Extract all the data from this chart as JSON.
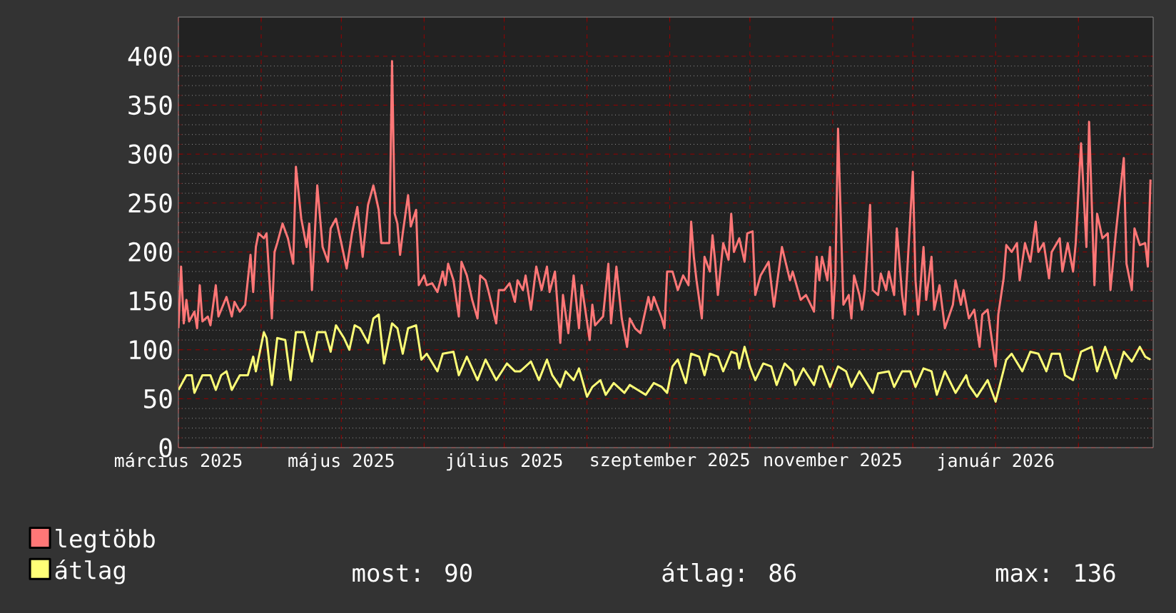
{
  "chart_data": {
    "type": "line",
    "xlim": [
      "2025-03-01",
      "2026-03-01"
    ],
    "xticks": [
      {
        "value": "2025-03-01",
        "label": "március 2025"
      },
      {
        "value": "2025-04-01",
        "label": null
      },
      {
        "value": "2025-05-01",
        "label": "május 2025"
      },
      {
        "value": "2025-06-01",
        "label": null
      },
      {
        "value": "2025-07-01",
        "label": "július 2025"
      },
      {
        "value": "2025-08-01",
        "label": null
      },
      {
        "value": "2025-09-01",
        "label": "szeptember 2025"
      },
      {
        "value": "2025-10-01",
        "label": null
      },
      {
        "value": "2025-11-01",
        "label": "november 2025"
      },
      {
        "value": "2025-12-01",
        "label": null
      },
      {
        "value": "2026-01-01",
        "label": "január 2026"
      },
      {
        "value": "2026-02-01",
        "label": null
      }
    ],
    "ylim": [
      0,
      440
    ],
    "yticks": [
      0,
      50,
      100,
      150,
      200,
      250,
      300,
      350,
      400
    ],
    "grid": true,
    "legend": "bottom left",
    "annotations": [
      "most: 90",
      "átlag: 86",
      "max: 136"
    ],
    "series": [
      {
        "name": "legtöbb",
        "color": "#ff7777",
        "x": [
          "2025-03-01",
          "2025-03-02",
          "2025-03-03",
          "2025-03-04",
          "2025-03-05",
          "2025-03-07",
          "2025-03-08",
          "2025-03-09",
          "2025-03-10",
          "2025-03-12",
          "2025-03-13",
          "2025-03-15",
          "2025-03-16",
          "2025-03-19",
          "2025-03-21",
          "2025-03-22",
          "2025-03-24",
          "2025-03-26",
          "2025-03-28",
          "2025-03-29",
          "2025-03-30",
          "2025-03-31",
          "2025-04-02",
          "2025-04-03",
          "2025-04-05",
          "2025-04-06",
          "2025-04-07",
          "2025-04-09",
          "2025-04-11",
          "2025-04-13",
          "2025-04-14",
          "2025-04-16",
          "2025-04-18",
          "2025-04-19",
          "2025-04-20",
          "2025-04-22",
          "2025-04-24",
          "2025-04-26",
          "2025-04-27",
          "2025-04-29",
          "2025-05-01",
          "2025-05-03",
          "2025-05-05",
          "2025-05-07",
          "2025-05-09",
          "2025-05-11",
          "2025-05-13",
          "2025-05-15",
          "2025-05-16",
          "2025-05-19",
          "2025-05-20",
          "2025-05-21",
          "2025-05-22",
          "2025-05-23",
          "2025-05-24",
          "2025-05-26",
          "2025-05-27",
          "2025-05-29",
          "2025-05-30",
          "2025-06-01",
          "2025-06-02",
          "2025-06-04",
          "2025-06-06",
          "2025-06-08",
          "2025-06-09",
          "2025-06-10",
          "2025-06-12",
          "2025-06-14",
          "2025-06-15",
          "2025-06-17",
          "2025-06-19",
          "2025-06-21",
          "2025-06-22",
          "2025-06-24",
          "2025-06-25",
          "2025-06-28",
          "2025-06-29",
          "2025-07-01",
          "2025-07-03",
          "2025-07-05",
          "2025-07-06",
          "2025-07-08",
          "2025-07-09",
          "2025-07-11",
          "2025-07-13",
          "2025-07-15",
          "2025-07-17",
          "2025-07-18",
          "2025-07-20",
          "2025-07-22",
          "2025-07-23",
          "2025-07-25",
          "2025-07-27",
          "2025-07-29",
          "2025-07-30",
          "2025-08-02",
          "2025-08-03",
          "2025-08-04",
          "2025-08-07",
          "2025-08-09",
          "2025-08-10",
          "2025-08-12",
          "2025-08-14",
          "2025-08-16",
          "2025-08-17",
          "2025-08-19",
          "2025-08-21",
          "2025-08-24",
          "2025-08-25",
          "2025-08-26",
          "2025-08-29",
          "2025-08-30",
          "2025-08-31",
          "2025-09-02",
          "2025-09-04",
          "2025-09-06",
          "2025-09-08",
          "2025-09-09",
          "2025-09-10",
          "2025-09-11",
          "2025-09-13",
          "2025-09-14",
          "2025-09-16",
          "2025-09-17",
          "2025-09-18",
          "2025-09-19",
          "2025-09-21",
          "2025-09-23",
          "2025-09-24",
          "2025-09-25",
          "2025-09-27",
          "2025-09-29",
          "2025-09-30",
          "2025-10-02",
          "2025-10-03",
          "2025-10-05",
          "2025-10-08",
          "2025-10-10",
          "2025-10-12",
          "2025-10-13",
          "2025-10-16",
          "2025-10-17",
          "2025-10-20",
          "2025-10-22",
          "2025-10-25",
          "2025-10-26",
          "2025-10-27",
          "2025-10-28",
          "2025-10-30",
          "2025-10-31",
          "2025-11-01",
          "2025-11-02",
          "2025-11-03",
          "2025-11-05",
          "2025-11-07",
          "2025-11-08",
          "2025-11-09",
          "2025-11-11",
          "2025-11-12",
          "2025-11-13",
          "2025-11-15",
          "2025-11-16",
          "2025-11-18",
          "2025-11-19",
          "2025-11-21",
          "2025-11-22",
          "2025-11-24",
          "2025-11-25",
          "2025-11-27",
          "2025-11-28",
          "2025-11-29",
          "2025-12-01",
          "2025-12-02",
          "2025-12-03",
          "2025-12-05",
          "2025-12-06",
          "2025-12-08",
          "2025-12-09",
          "2025-12-11",
          "2025-12-13",
          "2025-12-16",
          "2025-12-17",
          "2025-12-19",
          "2025-12-20",
          "2025-12-22",
          "2025-12-24",
          "2025-12-26",
          "2025-12-27",
          "2025-12-29",
          "2026-01-01",
          "2026-01-02",
          "2026-01-04",
          "2026-01-05",
          "2026-01-07",
          "2026-01-09",
          "2026-01-10",
          "2026-01-12",
          "2026-01-14",
          "2026-01-16",
          "2026-01-17",
          "2026-01-19",
          "2026-01-21",
          "2026-01-22",
          "2026-01-25",
          "2026-01-26",
          "2026-01-28",
          "2026-01-30",
          "2026-01-31",
          "2026-02-02",
          "2026-02-04",
          "2026-02-05",
          "2026-02-07",
          "2026-02-08",
          "2026-02-10",
          "2026-02-12",
          "2026-02-13",
          "2026-02-15",
          "2026-02-18",
          "2026-02-19",
          "2026-02-21",
          "2026-02-22",
          "2026-02-24",
          "2026-02-26",
          "2026-02-27",
          "2026-02-28"
        ],
        "values": [
          122,
          185,
          127,
          151,
          129,
          139,
          122,
          166,
          129,
          134,
          125,
          166,
          134,
          154,
          134,
          149,
          139,
          146,
          197,
          159,
          205,
          219,
          214,
          219,
          132,
          200,
          209,
          229,
          214,
          188,
          287,
          234,
          205,
          229,
          161,
          268,
          205,
          190,
          224,
          234,
          209,
          183,
          219,
          246,
          195,
          248,
          268,
          243,
          209,
          209,
          395,
          239,
          229,
          197,
          219,
          258,
          226,
          243,
          166,
          176,
          166,
          168,
          159,
          180,
          166,
          188,
          171,
          134,
          190,
          176,
          151,
          132,
          176,
          171,
          161,
          127,
          161,
          161,
          168,
          149,
          171,
          161,
          176,
          141,
          185,
          161,
          185,
          159,
          180,
          107,
          156,
          117,
          176,
          122,
          166,
          110,
          146,
          125,
          134,
          188,
          127,
          185,
          132,
          103,
          132,
          122,
          117,
          154,
          141,
          154,
          132,
          122,
          180,
          180,
          161,
          176,
          166,
          231,
          195,
          171,
          132,
          195,
          180,
          217,
          190,
          156,
          209,
          192,
          239,
          200,
          214,
          190,
          219,
          221,
          156,
          176,
          190,
          144,
          185,
          205,
          171,
          180,
          151,
          156,
          139,
          195,
          171,
          195,
          171,
          205,
          132,
          176,
          326,
          146,
          156,
          132,
          176,
          156,
          141,
          161,
          248,
          161,
          156,
          178,
          161,
          180,
          156,
          224,
          156,
          136,
          185,
          282,
          171,
          136,
          205,
          151,
          195,
          141,
          166,
          122,
          146,
          171,
          146,
          161,
          132,
          141,
          103,
          136,
          141,
          83,
          136,
          173,
          207,
          200,
          209,
          171,
          209,
          190,
          231,
          200,
          209,
          173,
          200,
          214,
          180,
          209,
          180,
          209,
          311,
          205,
          333,
          166,
          239,
          214,
          219,
          161,
          219,
          296,
          188,
          161,
          224,
          207,
          209,
          185,
          274
        ]
      },
      {
        "name": "átlag",
        "color": "#ffff77",
        "x": [
          "2025-03-01",
          "2025-03-04",
          "2025-03-06",
          "2025-03-07",
          "2025-03-10",
          "2025-03-13",
          "2025-03-15",
          "2025-03-17",
          "2025-03-19",
          "2025-03-21",
          "2025-03-24",
          "2025-03-27",
          "2025-03-29",
          "2025-03-30",
          "2025-04-02",
          "2025-04-03",
          "2025-04-05",
          "2025-04-07",
          "2025-04-10",
          "2025-04-12",
          "2025-04-14",
          "2025-04-17",
          "2025-04-20",
          "2025-04-22",
          "2025-04-25",
          "2025-04-27",
          "2025-04-29",
          "2025-05-02",
          "2025-05-04",
          "2025-05-06",
          "2025-05-08",
          "2025-05-11",
          "2025-05-13",
          "2025-05-15",
          "2025-05-17",
          "2025-05-20",
          "2025-05-22",
          "2025-05-24",
          "2025-05-26",
          "2025-05-29",
          "2025-05-31",
          "2025-06-02",
          "2025-06-06",
          "2025-06-08",
          "2025-06-12",
          "2025-06-14",
          "2025-06-17",
          "2025-06-21",
          "2025-06-24",
          "2025-06-28",
          "2025-07-02",
          "2025-07-05",
          "2025-07-07",
          "2025-07-11",
          "2025-07-14",
          "2025-07-17",
          "2025-07-19",
          "2025-07-22",
          "2025-07-24",
          "2025-07-27",
          "2025-07-29",
          "2025-08-01",
          "2025-08-03",
          "2025-08-06",
          "2025-08-08",
          "2025-08-11",
          "2025-08-15",
          "2025-08-17",
          "2025-08-20",
          "2025-08-23",
          "2025-08-26",
          "2025-08-29",
          "2025-08-31",
          "2025-09-02",
          "2025-09-04",
          "2025-09-07",
          "2025-09-09",
          "2025-09-12",
          "2025-09-14",
          "2025-09-16",
          "2025-09-19",
          "2025-09-21",
          "2025-09-24",
          "2025-09-26",
          "2025-09-27",
          "2025-09-29",
          "2025-10-01",
          "2025-10-03",
          "2025-10-06",
          "2025-10-09",
          "2025-10-11",
          "2025-10-14",
          "2025-10-17",
          "2025-10-18",
          "2025-10-21",
          "2025-10-25",
          "2025-10-27",
          "2025-10-28",
          "2025-10-31",
          "2025-11-03",
          "2025-11-06",
          "2025-11-08",
          "2025-11-11",
          "2025-11-16",
          "2025-11-18",
          "2025-11-22",
          "2025-11-24",
          "2025-11-27",
          "2025-11-30",
          "2025-12-02",
          "2025-12-05",
          "2025-12-08",
          "2025-12-10",
          "2025-12-13",
          "2025-12-17",
          "2025-12-21",
          "2025-12-22",
          "2025-12-25",
          "2025-12-29",
          "2026-01-01",
          "2026-01-05",
          "2026-01-07",
          "2026-01-11",
          "2026-01-14",
          "2026-01-17",
          "2026-01-20",
          "2026-01-22",
          "2026-01-25",
          "2026-01-27",
          "2026-01-30",
          "2026-02-02",
          "2026-02-06",
          "2026-02-08",
          "2026-02-11",
          "2026-02-15",
          "2026-02-18",
          "2026-02-21",
          "2026-02-24",
          "2026-02-26",
          "2026-02-28"
        ],
        "values": [
          59,
          74,
          74,
          56,
          74,
          74,
          59,
          74,
          78,
          59,
          74,
          74,
          93,
          78,
          118,
          112,
          64,
          112,
          110,
          69,
          118,
          118,
          88,
          118,
          118,
          98,
          125,
          112,
          100,
          125,
          122,
          107,
          132,
          136,
          86,
          127,
          122,
          96,
          122,
          125,
          90,
          96,
          78,
          96,
          98,
          74,
          93,
          69,
          90,
          69,
          86,
          78,
          78,
          88,
          69,
          90,
          74,
          62,
          78,
          69,
          81,
          52,
          62,
          69,
          54,
          66,
          56,
          64,
          59,
          54,
          66,
          62,
          56,
          83,
          90,
          66,
          96,
          93,
          74,
          96,
          93,
          78,
          98,
          96,
          81,
          103,
          83,
          69,
          86,
          83,
          64,
          86,
          78,
          64,
          81,
          64,
          83,
          83,
          62,
          83,
          78,
          62,
          78,
          56,
          76,
          78,
          62,
          78,
          78,
          62,
          81,
          78,
          54,
          78,
          56,
          74,
          64,
          52,
          69,
          47,
          90,
          96,
          78,
          98,
          96,
          78,
          96,
          96,
          74,
          69,
          98,
          103,
          78,
          103,
          71,
          98,
          88,
          103,
          93,
          90
        ]
      }
    ]
  }
}
